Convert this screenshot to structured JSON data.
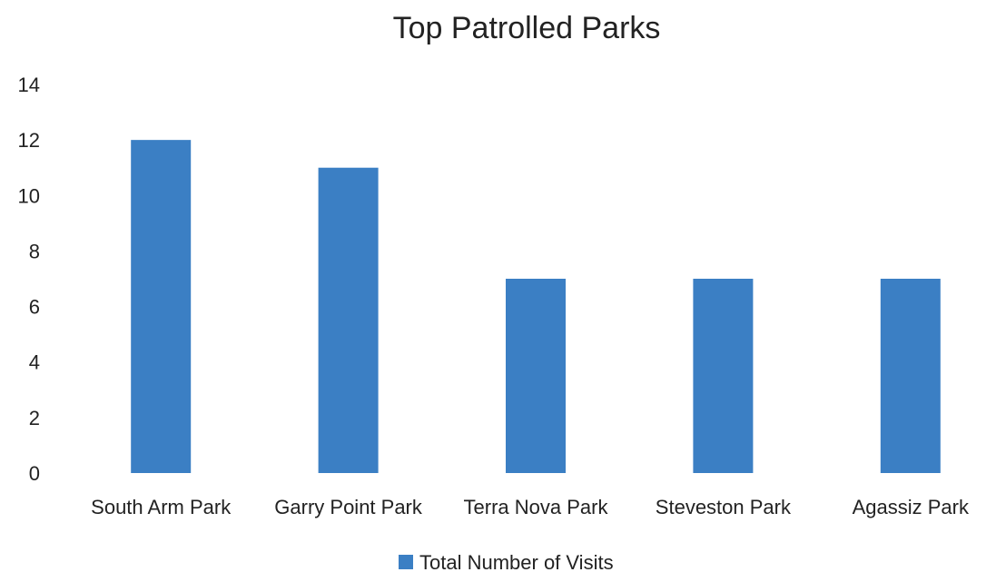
{
  "chart_data": {
    "type": "bar",
    "title": "Top Patrolled Parks",
    "categories": [
      "South Arm Park",
      "Garry Point Park",
      "Terra Nova Park",
      "Steveston Park",
      "Agassiz Park"
    ],
    "series": [
      {
        "name": "Total Number of Visits",
        "values": [
          12,
          11,
          7,
          7,
          7
        ],
        "color": "#3b7fc4"
      }
    ],
    "ylim": [
      0,
      14
    ],
    "y_ticks": [
      "0",
      "2",
      "4",
      "6",
      "8",
      "10",
      "12",
      "14"
    ],
    "grid": false,
    "legend_position": "bottom"
  }
}
